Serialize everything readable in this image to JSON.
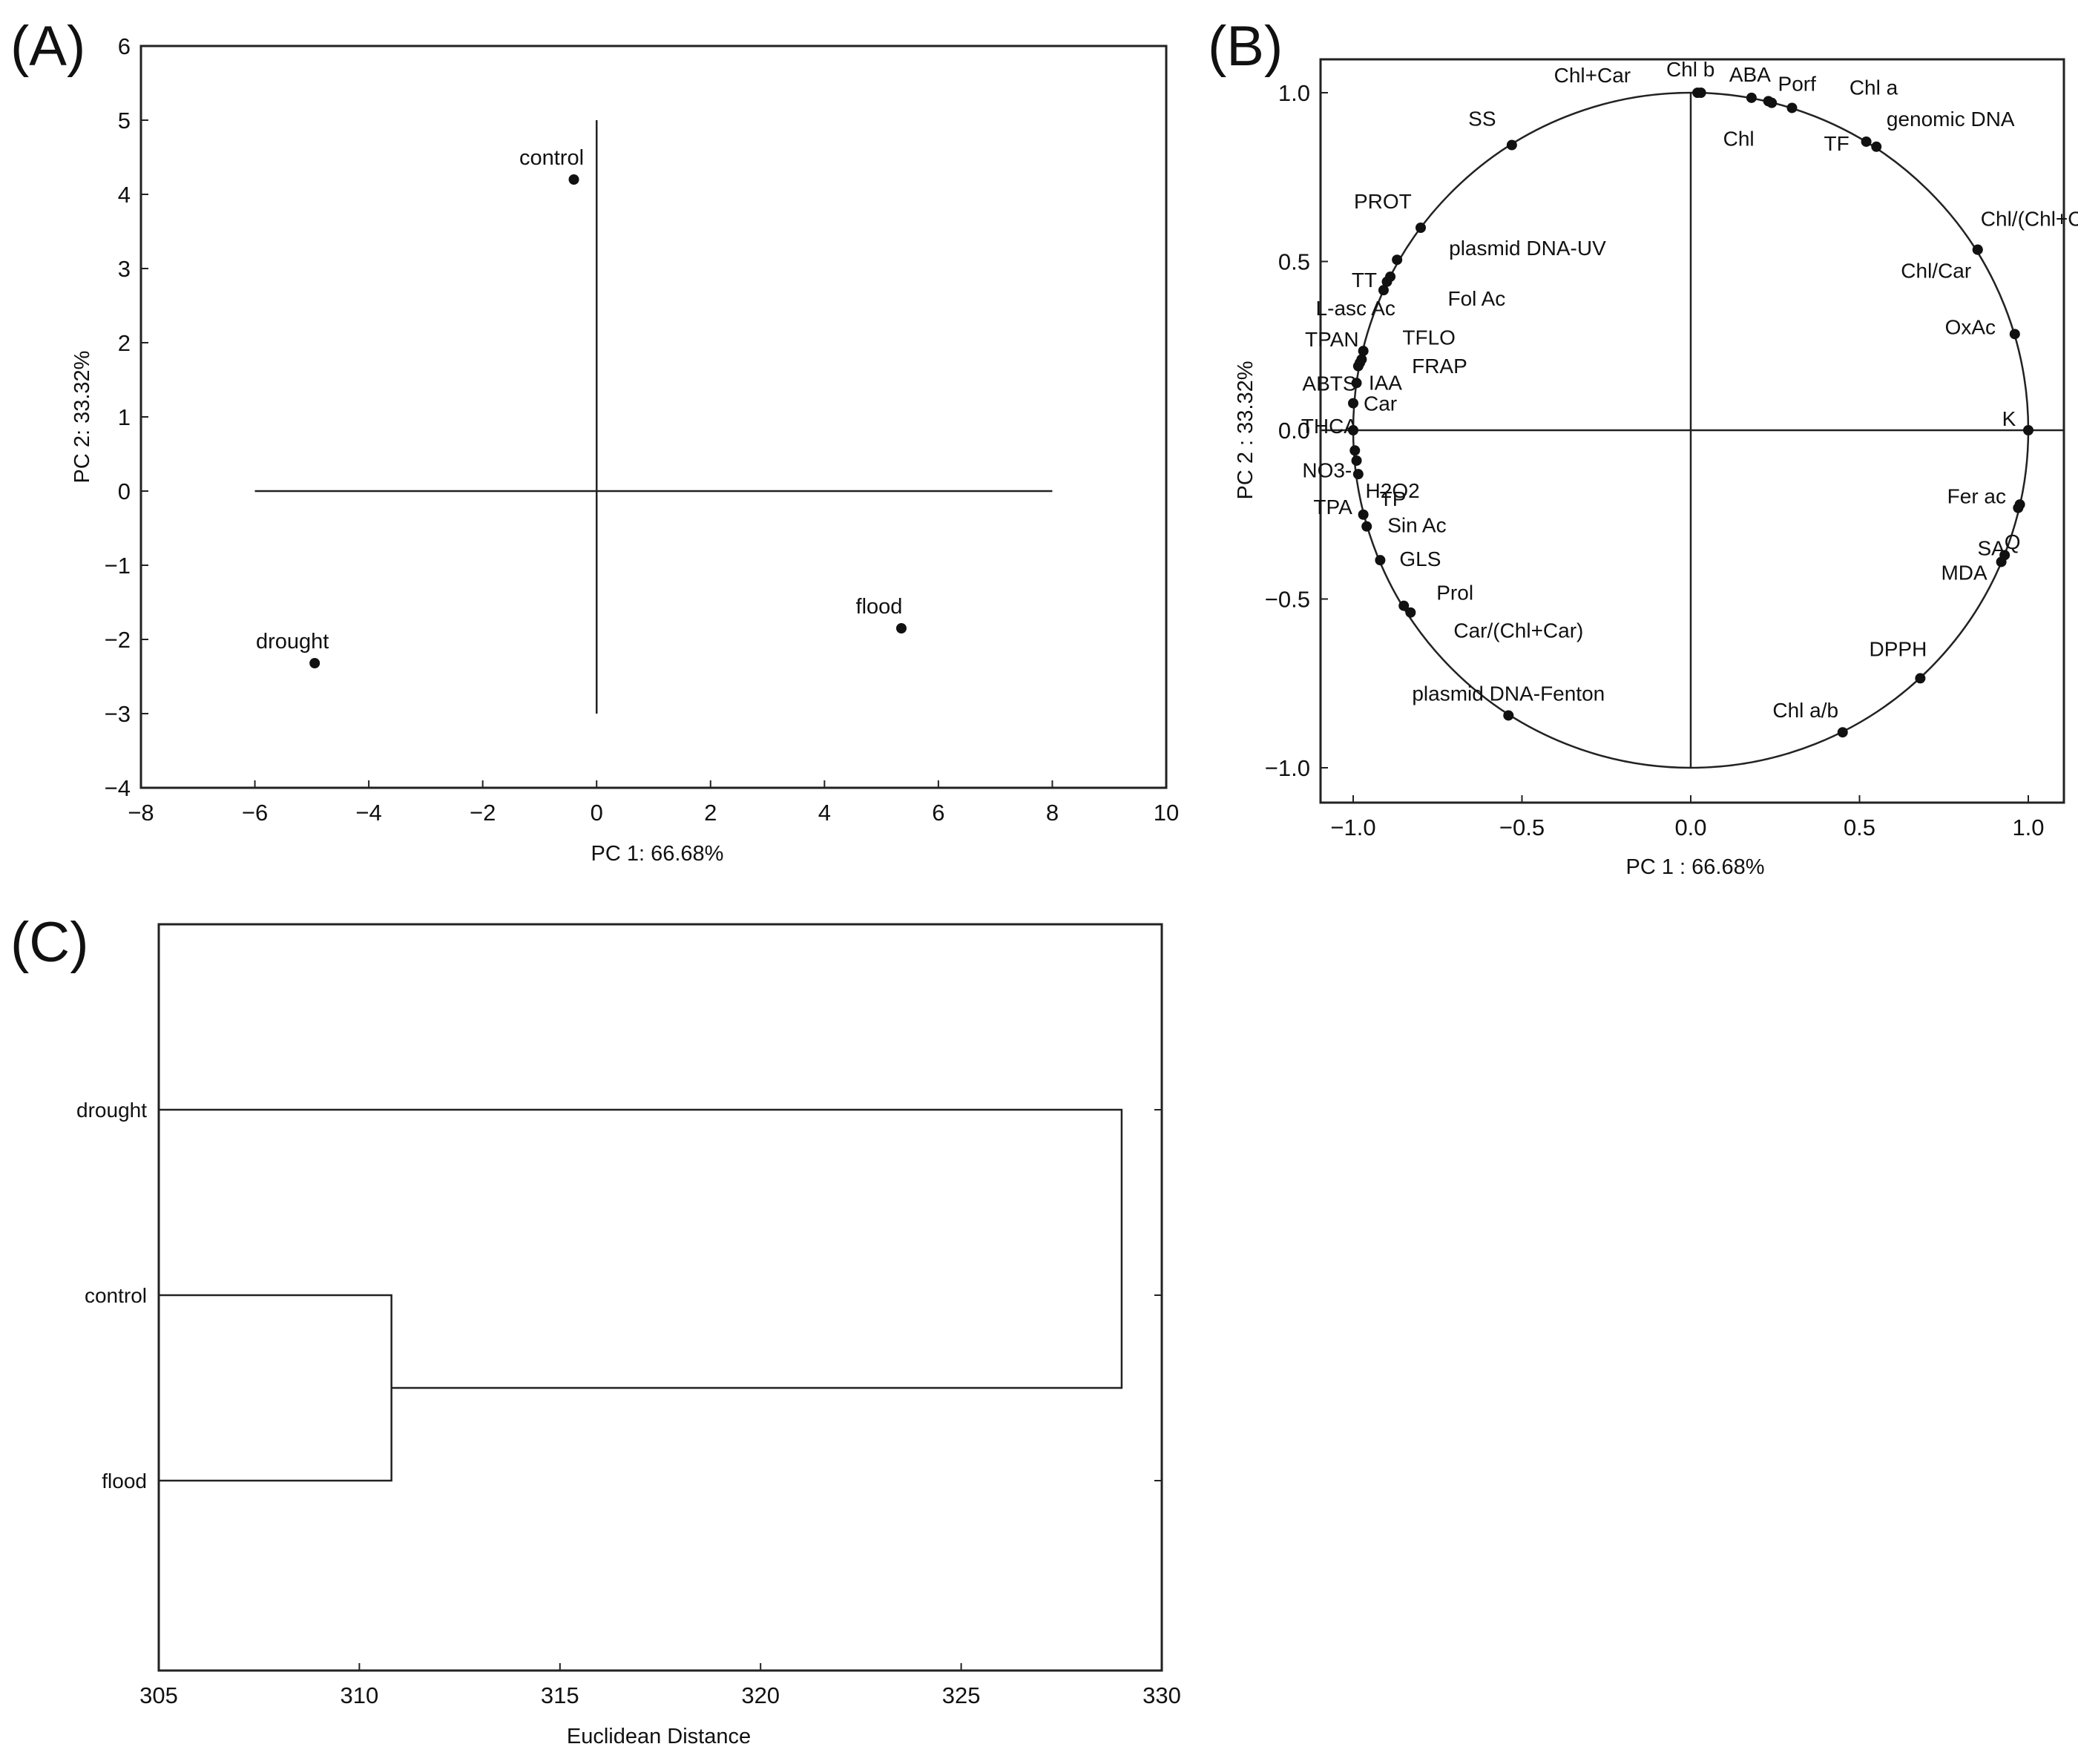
{
  "chart_data": [
    {
      "panel": "(A)",
      "type": "scatter",
      "xlabel": "PC 1: 66.68%",
      "ylabel": "PC 2: 33.32%",
      "xlim": [
        -8,
        10
      ],
      "ylim": [
        -4,
        6
      ],
      "xticks": [
        "−8",
        "−6",
        "−4",
        "−2",
        "0",
        "2",
        "4",
        "6",
        "8",
        "10"
      ],
      "yticks": [
        "6",
        "5",
        "4",
        "3",
        "2",
        "1",
        "0",
        "−1",
        "−2",
        "−3",
        "−4"
      ],
      "reference_lines": {
        "horizontal_y": 0,
        "horizontal_x_range": [
          -6,
          8
        ],
        "vertical_x": 0,
        "vertical_y_range": [
          -3,
          5
        ]
      },
      "points": [
        {
          "label": "control",
          "x": -0.4,
          "y": 4.2
        },
        {
          "label": "drought",
          "x": -4.95,
          "y": -2.32
        },
        {
          "label": "flood",
          "x": 5.35,
          "y": -1.85
        }
      ]
    },
    {
      "panel": "(B)",
      "type": "scatter",
      "subtype": "correlation circle",
      "xlabel": "PC 1 : 66.68%",
      "ylabel": "PC 2 : 33.32%",
      "xlim": [
        -1.1,
        1.12
      ],
      "ylim": [
        -1.1,
        1.1
      ],
      "xticks": [
        "−1.0",
        "−0.5",
        "0.0",
        "0.5",
        "1.0"
      ],
      "yticks": [
        "1.0",
        "0.5",
        "0.0",
        "−0.5",
        "−1.0"
      ],
      "points": [
        {
          "label": "Chl+Car",
          "x": 0.02,
          "y": 1.0
        },
        {
          "label": "Chl b",
          "x": 0.03,
          "y": 1.0
        },
        {
          "label": "ABA",
          "x": 0.18,
          "y": 0.985
        },
        {
          "label": "Chl",
          "x": 0.23,
          "y": 0.975
        },
        {
          "label": "Porf",
          "x": 0.24,
          "y": 0.97
        },
        {
          "label": "Chl a",
          "x": 0.3,
          "y": 0.955
        },
        {
          "label": "TF",
          "x": 0.52,
          "y": 0.855
        },
        {
          "label": "genomic DNA",
          "x": 0.55,
          "y": 0.84
        },
        {
          "label": "SS",
          "x": -0.53,
          "y": 0.845
        },
        {
          "label": "PROT",
          "x": -0.8,
          "y": 0.6
        },
        {
          "label": "plasmid DNA-UV",
          "x": -0.87,
          "y": 0.505
        },
        {
          "label": "TT",
          "x": -0.89,
          "y": 0.455
        },
        {
          "label": "Fol Ac",
          "x": -0.9,
          "y": 0.44
        },
        {
          "label": "L-asc Ac",
          "x": -0.91,
          "y": 0.415
        },
        {
          "label": "TPAN",
          "x": -0.97,
          "y": 0.235
        },
        {
          "label": "TFLO",
          "x": -0.975,
          "y": 0.21
        },
        {
          "label": "FRAP",
          "x": -0.98,
          "y": 0.2
        },
        {
          "label": "IAA",
          "x": -0.985,
          "y": 0.19
        },
        {
          "label": "ABTS",
          "x": -0.99,
          "y": 0.14
        },
        {
          "label": "Car",
          "x": -1.0,
          "y": 0.08
        },
        {
          "label": "THCA",
          "x": -1.0,
          "y": 0.0
        },
        {
          "label": "NO3-",
          "x": -0.995,
          "y": -0.06
        },
        {
          "label": "H2O2",
          "x": -0.99,
          "y": -0.09
        },
        {
          "label": "TPA",
          "x": -0.985,
          "y": -0.13
        },
        {
          "label": "TP",
          "x": -0.97,
          "y": -0.25
        },
        {
          "label": "Sin Ac",
          "x": -0.96,
          "y": -0.285
        },
        {
          "label": "GLS",
          "x": -0.92,
          "y": -0.385
        },
        {
          "label": "Prol",
          "x": -0.85,
          "y": -0.52
        },
        {
          "label": "Car/(Chl+Car)",
          "x": -0.83,
          "y": -0.54
        },
        {
          "label": "plasmid DNA-Fenton",
          "x": -0.54,
          "y": -0.845
        },
        {
          "label": "Chl/(Chl+Car)",
          "x": 0.85,
          "y": 0.535
        },
        {
          "label": "Chl/Car",
          "x": 0.85,
          "y": 0.535
        },
        {
          "label": "OxAc",
          "x": 0.96,
          "y": 0.285
        },
        {
          "label": "K",
          "x": 1.0,
          "y": 0.0
        },
        {
          "label": "Q",
          "x": 0.975,
          "y": -0.22
        },
        {
          "label": "Fer ac",
          "x": 0.97,
          "y": -0.23
        },
        {
          "label": "SA",
          "x": 0.93,
          "y": -0.37
        },
        {
          "label": "MDA",
          "x": 0.92,
          "y": -0.39
        },
        {
          "label": "DPPH",
          "x": 0.68,
          "y": -0.735
        },
        {
          "label": "Chl a/b",
          "x": 0.45,
          "y": -0.895
        }
      ]
    },
    {
      "panel": "(C)",
      "type": "dendrogram",
      "xlabel": "Euclidean Distance",
      "xlim": [
        305,
        330
      ],
      "xticks": [
        "305",
        "310",
        "315",
        "320",
        "325",
        "330"
      ],
      "leaves": [
        "drought",
        "control",
        "flood"
      ],
      "merges": [
        {
          "members": [
            "control",
            "flood"
          ],
          "distance": 310.8
        },
        {
          "members": [
            "drought",
            "control+flood"
          ],
          "distance": 329.0
        }
      ]
    }
  ]
}
